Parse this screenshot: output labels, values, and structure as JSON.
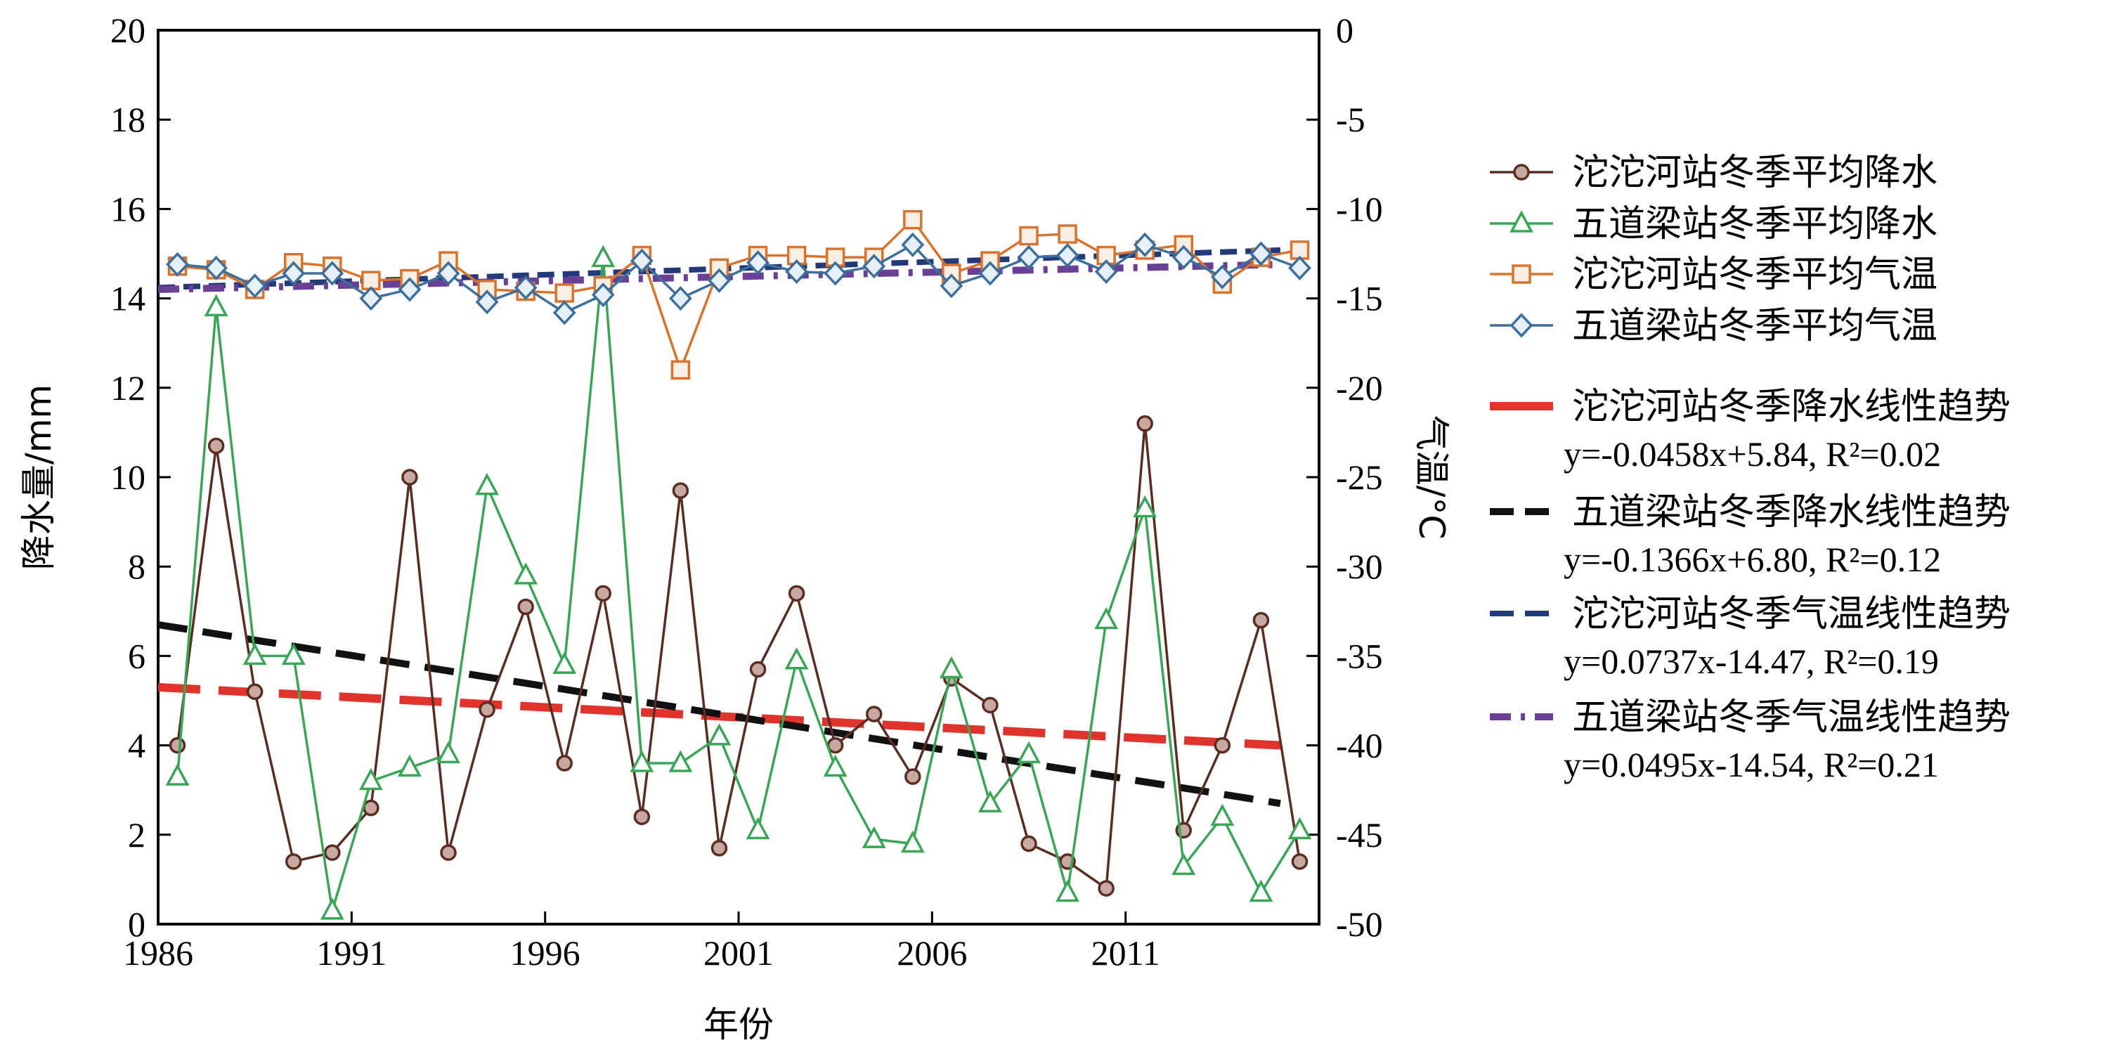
{
  "chart_data": {
    "type": "line",
    "xlabel": "年份",
    "ylabel_left": "降水量/mm",
    "ylabel_right": "气温/°C",
    "xlim": [
      1986,
      2016
    ],
    "xticks": [
      "1986",
      "1991",
      "1996",
      "2001",
      "2006",
      "2011"
    ],
    "ylim_left": [
      0,
      20
    ],
    "yticks_left": [
      "0",
      "2",
      "4",
      "6",
      "8",
      "10",
      "12",
      "14",
      "16",
      "18",
      "20"
    ],
    "ylim_right": [
      -50,
      0
    ],
    "yticks_right": [
      "0",
      "-5",
      "-10",
      "-15",
      "-20",
      "-25",
      "-30",
      "-35",
      "-40",
      "-45",
      "-50"
    ],
    "grid": false,
    "legend_position": "right",
    "series": [
      {
        "name": "沱沱河站冬季平均降水",
        "axis": "left",
        "marker": "circle",
        "color": "#5a2d22",
        "x": [
          1986,
          1987,
          1988,
          1989,
          1990,
          1991,
          1992,
          1993,
          1994,
          1995,
          1996,
          1997,
          1998,
          1999,
          2000,
          2001,
          2002,
          2003,
          2004,
          2005,
          2006,
          2007,
          2008,
          2009,
          2010,
          2011,
          2012,
          2013,
          2014,
          2015
        ],
        "values": [
          4.0,
          10.7,
          5.2,
          1.4,
          1.6,
          2.6,
          10.0,
          1.6,
          4.8,
          7.1,
          3.6,
          7.4,
          2.4,
          9.7,
          1.7,
          5.7,
          7.4,
          4.0,
          4.7,
          3.3,
          5.5,
          4.9,
          1.8,
          1.4,
          0.8,
          11.2,
          2.1,
          4.0,
          6.8,
          1.4
        ]
      },
      {
        "name": "五道梁站冬季平均降水",
        "axis": "left",
        "marker": "triangle",
        "color": "#3aa557",
        "x": [
          1986,
          1987,
          1988,
          1989,
          1990,
          1991,
          1992,
          1993,
          1994,
          1995,
          1996,
          1997,
          1998,
          1999,
          2000,
          2001,
          2002,
          2003,
          2004,
          2005,
          2006,
          2007,
          2008,
          2009,
          2010,
          2011,
          2012,
          2013,
          2014,
          2015
        ],
        "values": [
          3.3,
          13.8,
          6.0,
          6.0,
          0.3,
          3.2,
          3.5,
          3.8,
          9.8,
          7.8,
          5.8,
          14.9,
          3.6,
          3.6,
          4.2,
          2.1,
          5.9,
          3.5,
          1.9,
          1.8,
          5.7,
          2.7,
          3.8,
          0.7,
          6.8,
          9.3,
          1.3,
          2.4,
          0.7,
          2.1
        ]
      },
      {
        "name": "沱沱河站冬季平均气温",
        "axis": "right",
        "marker": "square",
        "color": "#d9722c",
        "x": [
          1986,
          1987,
          1988,
          1989,
          1990,
          1991,
          1992,
          1993,
          1994,
          1995,
          1996,
          1997,
          1998,
          1999,
          2000,
          2001,
          2002,
          2003,
          2004,
          2005,
          2006,
          2007,
          2008,
          2009,
          2010,
          2011,
          2012,
          2013,
          2014,
          2015
        ],
        "values": [
          -13.2,
          -13.4,
          -14.5,
          -13.0,
          -13.2,
          -14.0,
          -13.9,
          -12.9,
          -14.5,
          -14.6,
          -14.7,
          -14.3,
          -12.6,
          -19.0,
          -13.3,
          -12.6,
          -12.6,
          -12.7,
          -12.7,
          -10.6,
          -13.6,
          -12.9,
          -11.5,
          -11.4,
          -12.6,
          -12.3,
          -12.0,
          -14.2,
          -12.7,
          -12.3
        ]
      },
      {
        "name": "五道梁站冬季平均气温",
        "axis": "right",
        "marker": "diamond",
        "color": "#3d6f9c",
        "x": [
          1986,
          1987,
          1988,
          1989,
          1990,
          1991,
          1992,
          1993,
          1994,
          1995,
          1996,
          1997,
          1998,
          1999,
          2000,
          2001,
          2002,
          2003,
          2004,
          2005,
          2006,
          2007,
          2008,
          2009,
          2010,
          2011,
          2012,
          2013,
          2014,
          2015
        ],
        "values": [
          -13.1,
          -13.3,
          -14.3,
          -13.6,
          -13.6,
          -15.0,
          -14.5,
          -13.6,
          -15.2,
          -14.4,
          -15.8,
          -14.8,
          -12.9,
          -15.0,
          -14.0,
          -13.0,
          -13.5,
          -13.6,
          -13.2,
          -12.0,
          -14.3,
          -13.6,
          -12.7,
          -12.6,
          -13.5,
          -12.0,
          -12.7,
          -13.8,
          -12.5,
          -13.3
        ]
      }
    ],
    "trendlines": [
      {
        "name": "沱沱河站冬季降水线性趋势",
        "equation": "y=-0.0458x+5.84, R²=0.02",
        "axis": "left",
        "color": "#e0332b",
        "style": "long-dash",
        "x": [
          1986,
          2015
        ],
        "values": [
          5.3,
          4.0
        ]
      },
      {
        "name": "五道梁站冬季降水线性趋势",
        "equation": "y=-0.1366x+6.80, R²=0.12",
        "axis": "left",
        "color": "#111111",
        "style": "dash",
        "x": [
          1986,
          2015
        ],
        "values": [
          6.7,
          2.7
        ]
      },
      {
        "name": "沱沱河站冬季气温线性趋势",
        "equation": "y=0.0737x-14.47, R²=0.19",
        "axis": "right",
        "color": "#233a7a",
        "style": "short-dash",
        "x": [
          1986,
          2015
        ],
        "values": [
          -14.4,
          -12.3
        ]
      },
      {
        "name": "五道梁站冬季气温线性趋势",
        "equation": "y=0.0495x-14.54, R²=0.21",
        "axis": "right",
        "color": "#6a3f96",
        "style": "dash-dot",
        "x": [
          1986,
          2015
        ],
        "values": [
          -14.5,
          -13.1
        ]
      }
    ]
  }
}
